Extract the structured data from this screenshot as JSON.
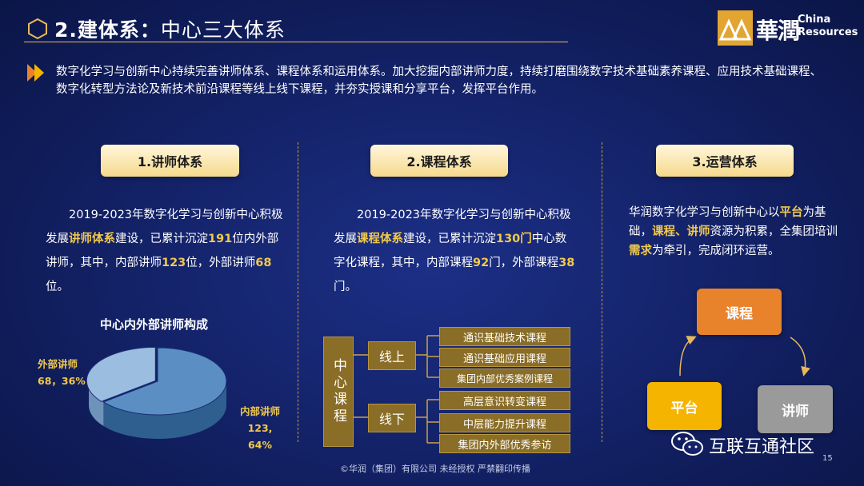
{
  "header": {
    "title_num": "2.",
    "title_main": "建体系：",
    "title_rest": "中心三大体系",
    "logo_cn": "華潤",
    "logo_en_1": "China",
    "logo_en_2": "Resources"
  },
  "intro": "数字化学习与创新中心持续完善讲师体系、课程体系和运用体系。加大挖掘内部讲师力度，持续打磨围绕数字技术基础素养课程、应用技术基础课程、数字化转型方法论及新技术前沿课程等线上线下课程，并夯实授课和分享平台，发挥平台作用。",
  "col1": {
    "pill": "1.讲师体系",
    "t1": "2019-2023年数字化学习与创新中心积极发展",
    "h1": "讲师体系",
    "t2": "建设，已累计沉淀",
    "h2": "191",
    "t3": "位内外部讲师，其中，内部讲师",
    "h3": "123",
    "t4": "位，外部讲师",
    "h4": "68",
    "t5": "位。",
    "pie_title": "中心内外部讲师构成"
  },
  "col2": {
    "pill": "2.课程体系",
    "t1": "2019-2023年数字化学习与创新中心积极发展",
    "h1": "课程体系",
    "t2": "建设，已累计沉淀",
    "h2": "130门",
    "t3": "中心数字化课程，其中，内部课程",
    "h3": "92",
    "t4": "门，外部课程",
    "h4": "38",
    "t5": "门。",
    "tree_root": "中心课程",
    "online": "线上",
    "offline": "线下",
    "online_courses": [
      "通识基础技术课程",
      "通识基础应用课程",
      "集团内部优秀案例课程"
    ],
    "offline_courses": [
      "高层意识转变课程",
      "中层能力提升课程",
      "集团内外部优秀参访"
    ]
  },
  "col3": {
    "pill": "3.运营体系",
    "t1": "华润数字化学习与创新中心以",
    "h1": "平台",
    "t2": "为基础，",
    "h2": "课程、讲师",
    "t3": "资源为积累，全集团培训",
    "h3": "需求",
    "t4": "为牵引，完成闭环运营。",
    "flow_course": "课程",
    "flow_platform": "平台",
    "flow_teacher": "讲师"
  },
  "chart_data": {
    "type": "pie",
    "title": "中心内外部讲师构成",
    "slices": [
      {
        "name": "内部讲师",
        "value": 123,
        "percent": 64,
        "color": "#5b8fc4"
      },
      {
        "name": "外部讲师",
        "value": 68,
        "percent": 36,
        "color": "#9bbde0"
      }
    ],
    "labels": {
      "internal_name": "内部讲师",
      "internal_value": "123,",
      "internal_pct": "64%",
      "external_name": "外部讲师",
      "external_value": "68，36%"
    }
  },
  "footer": {
    "copyright": "©华润（集团）有限公司 未经授权 严禁翻印传播",
    "page": "15",
    "watermark": "互联互通社区"
  },
  "colors": {
    "accent_gold": "#f2c94c",
    "box_gold": "#8a6d26",
    "flow_orange": "#e8832c",
    "flow_yellow": "#f5b400",
    "flow_gray": "#9a9a9a"
  }
}
